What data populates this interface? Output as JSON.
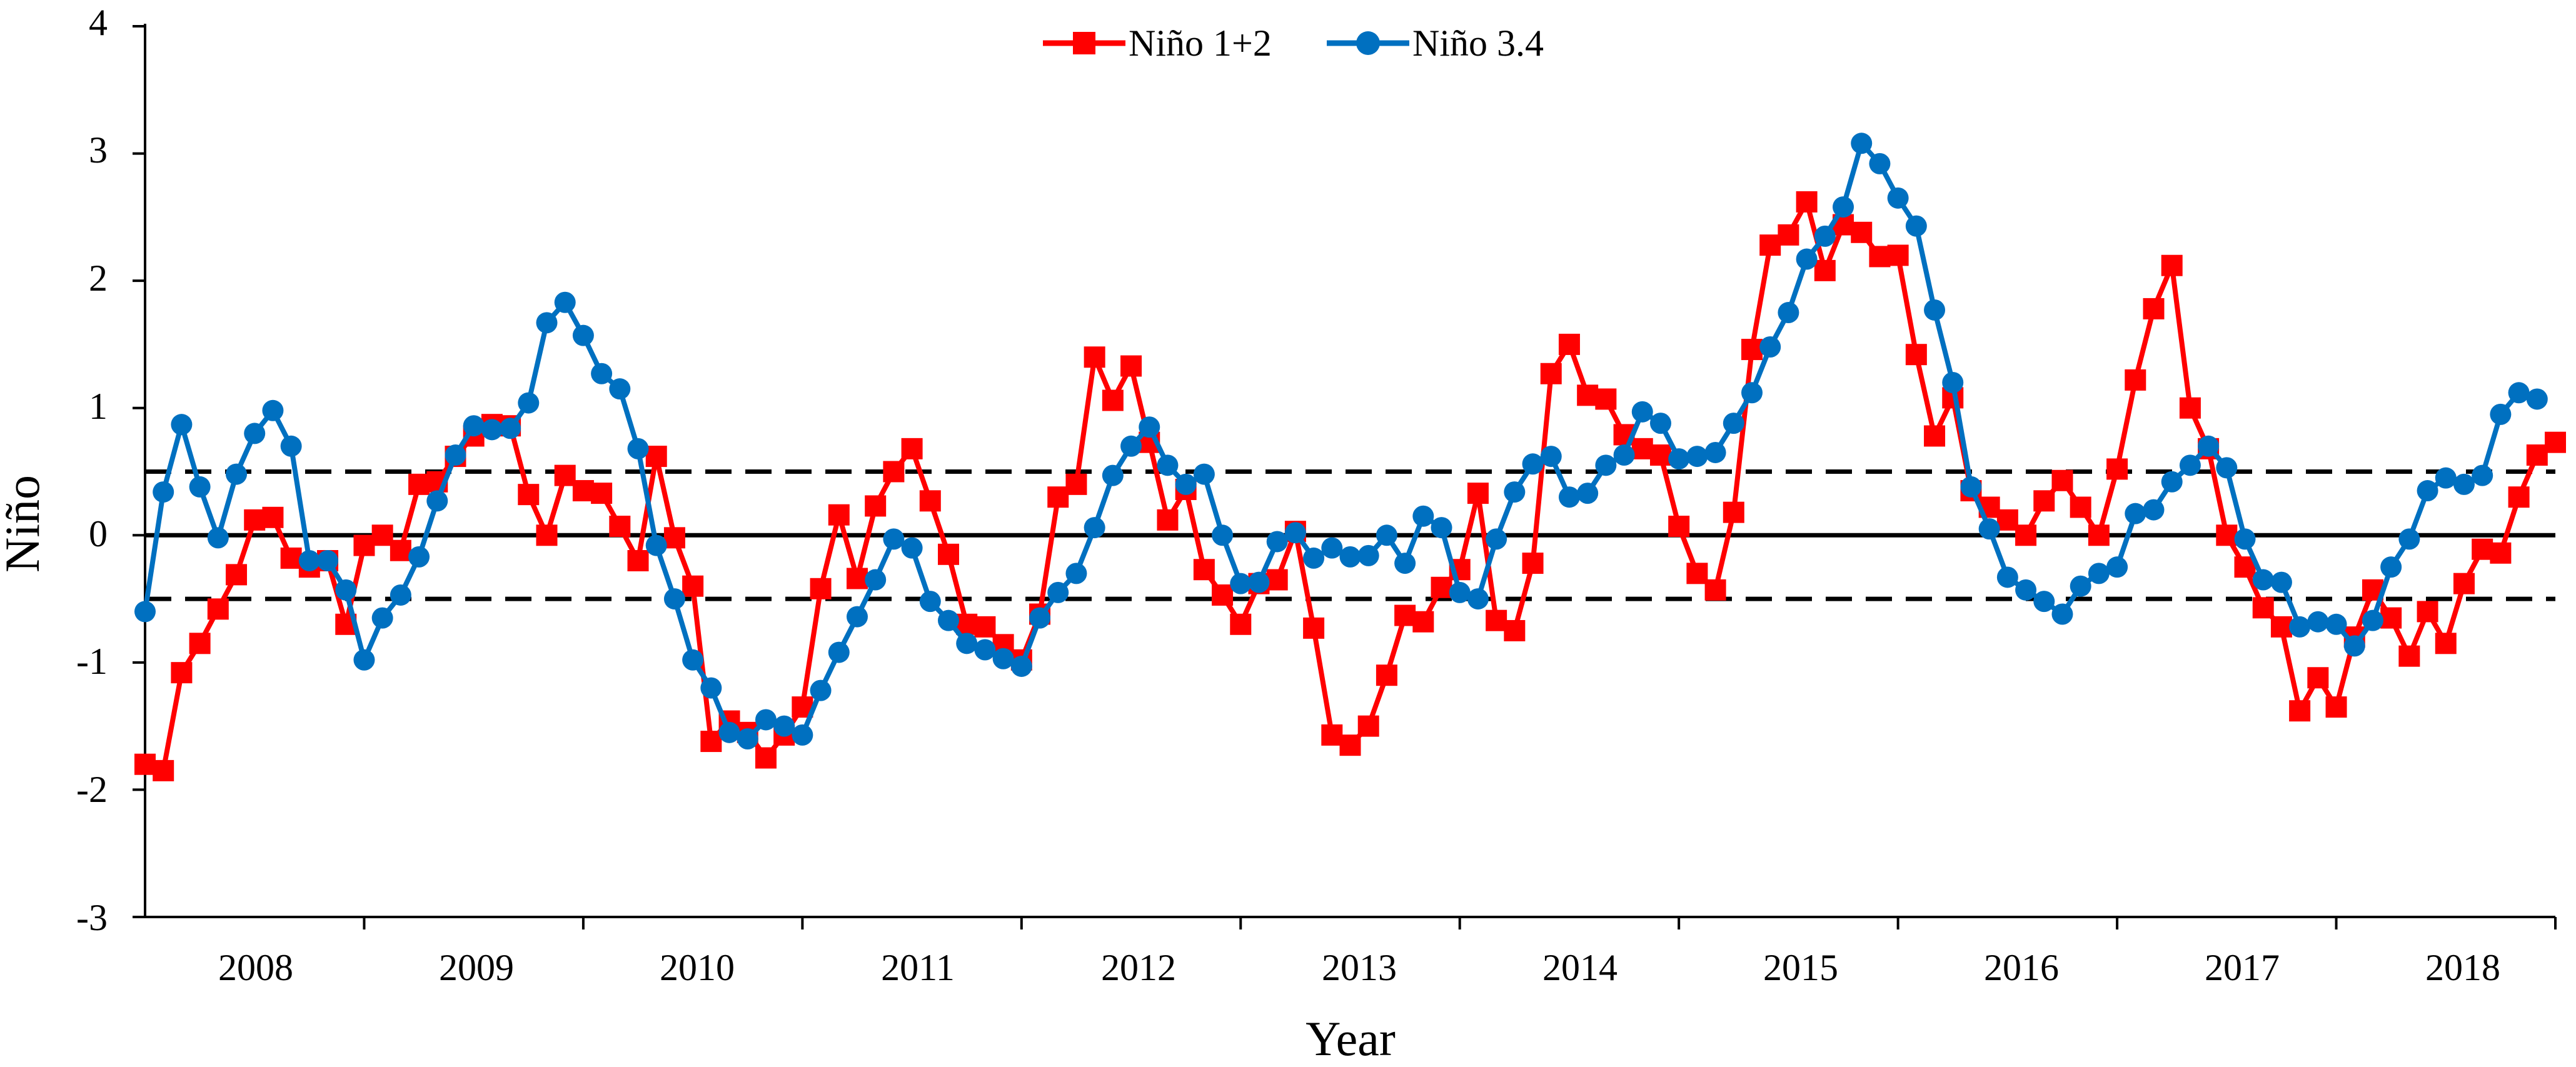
{
  "chart_data": {
    "type": "line",
    "xlabel": "Year",
    "ylabel": "Niño",
    "ylim": [
      -3,
      4
    ],
    "yticks": [
      "-3",
      "-2",
      "-1",
      "0",
      "1",
      "2",
      "3",
      "4"
    ],
    "years": [
      "2008",
      "2009",
      "2010",
      "2011",
      "2012",
      "2013",
      "2014",
      "2015",
      "2016",
      "2017",
      "2018"
    ],
    "grid": false,
    "legend_position": "top-center",
    "reference_lines": [
      {
        "y": 0,
        "style": "solid"
      },
      {
        "y": 0.5,
        "style": "dashed"
      },
      {
        "y": -0.5,
        "style": "dashed"
      }
    ],
    "series": [
      {
        "name": "Niño 1+2",
        "color": "#ff0000",
        "marker": "square",
        "values": [
          -1.8,
          -1.85,
          -1.08,
          -0.85,
          -0.58,
          -0.31,
          0.12,
          0.14,
          -0.18,
          -0.25,
          -0.2,
          -0.7,
          -0.08,
          0.0,
          -0.12,
          0.4,
          0.42,
          0.62,
          0.78,
          0.87,
          0.86,
          0.32,
          0.0,
          0.47,
          0.35,
          0.33,
          0.07,
          -0.2,
          0.62,
          -0.02,
          -0.4,
          -1.62,
          -1.46,
          -1.55,
          -1.75,
          -1.57,
          -1.35,
          -0.42,
          0.16,
          -0.34,
          0.23,
          0.5,
          0.68,
          0.27,
          -0.15,
          -0.7,
          -0.72,
          -0.86,
          -0.98,
          -0.62,
          0.3,
          0.4,
          1.4,
          1.06,
          1.33,
          0.73,
          0.12,
          0.36,
          -0.27,
          -0.47,
          -0.7,
          -0.38,
          -0.35,
          0.03,
          -0.73,
          -1.57,
          -1.65,
          -1.5,
          -1.1,
          -0.63,
          -0.68,
          -0.41,
          -0.27,
          0.33,
          -0.67,
          -0.75,
          -0.22,
          1.27,
          1.5,
          1.1,
          1.07,
          0.79,
          0.68,
          0.63,
          0.07,
          -0.3,
          -0.43,
          0.18,
          1.46,
          2.28,
          2.36,
          2.62,
          2.08,
          2.44,
          2.38,
          2.19,
          2.2,
          1.42,
          0.78,
          1.08,
          0.35,
          0.22,
          0.12,
          0.0,
          0.27,
          0.43,
          0.22,
          0.0,
          0.52,
          1.22,
          1.78,
          2.12,
          1.0,
          0.68,
          0.0,
          -0.25,
          -0.57,
          -0.72,
          -1.38,
          -1.12,
          -1.35,
          -0.8,
          -0.43,
          -0.65,
          -0.95,
          -0.6,
          -0.85,
          -0.38,
          -0.11,
          -0.14,
          0.3,
          0.63,
          0.73
        ]
      },
      {
        "name": "Niño 3.4",
        "color": "#0070c0",
        "marker": "circle",
        "values": [
          -0.6,
          0.34,
          0.87,
          0.38,
          -0.02,
          0.48,
          0.8,
          0.98,
          0.7,
          -0.2,
          -0.2,
          -0.43,
          -0.98,
          -0.65,
          -0.47,
          -0.17,
          0.27,
          0.63,
          0.86,
          0.83,
          0.84,
          1.04,
          1.67,
          1.83,
          1.57,
          1.27,
          1.15,
          0.68,
          -0.08,
          -0.5,
          -0.98,
          -1.2,
          -1.55,
          -1.6,
          -1.45,
          -1.5,
          -1.57,
          -1.22,
          -0.92,
          -0.64,
          -0.35,
          -0.03,
          -0.1,
          -0.52,
          -0.67,
          -0.85,
          -0.9,
          -0.97,
          -1.03,
          -0.65,
          -0.45,
          -0.3,
          0.06,
          0.47,
          0.7,
          0.85,
          0.55,
          0.4,
          0.48,
          0.0,
          -0.38,
          -0.37,
          -0.05,
          0.02,
          -0.18,
          -0.1,
          -0.17,
          -0.16,
          0.0,
          -0.22,
          0.15,
          0.06,
          -0.45,
          -0.5,
          -0.03,
          0.34,
          0.56,
          0.62,
          0.3,
          0.33,
          0.55,
          0.63,
          0.97,
          0.88,
          0.6,
          0.62,
          0.65,
          0.88,
          1.12,
          1.48,
          1.75,
          2.17,
          2.35,
          2.58,
          3.08,
          2.92,
          2.65,
          2.43,
          1.77,
          1.2,
          0.38,
          0.05,
          -0.33,
          -0.43,
          -0.52,
          -0.62,
          -0.4,
          -0.3,
          -0.25,
          0.17,
          0.2,
          0.42,
          0.55,
          0.7,
          0.53,
          -0.03,
          -0.35,
          -0.37,
          -0.72,
          -0.68,
          -0.7,
          -0.87,
          -0.67,
          -0.25,
          -0.03,
          0.35,
          0.45,
          0.4,
          0.47,
          0.95,
          1.12,
          1.07
        ]
      }
    ]
  }
}
